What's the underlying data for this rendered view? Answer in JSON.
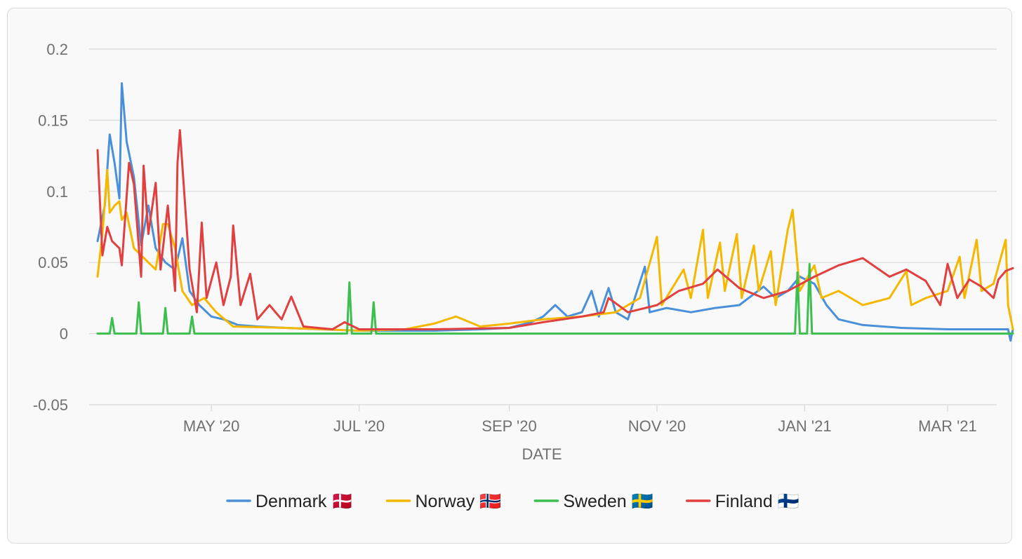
{
  "chart_data": {
    "type": "line",
    "xlabel": "DATE",
    "ylabel": "",
    "ylim": [
      -0.05,
      0.2
    ],
    "yticks": [
      "0.2",
      "0.15",
      "0.1",
      "0.05",
      "0",
      "-0.05"
    ],
    "xticks": [
      {
        "date": "2020-05-01",
        "label": "MAY '20"
      },
      {
        "date": "2020-07-01",
        "label": "JUL '20"
      },
      {
        "date": "2020-09-01",
        "label": "SEP '20"
      },
      {
        "date": "2020-11-01",
        "label": "NOV '20"
      },
      {
        "date": "2021-01-01",
        "label": "JAN '21"
      },
      {
        "date": "2021-03-01",
        "label": "MAR '21"
      }
    ],
    "xlim": [
      "2020-03-15",
      "2021-03-31"
    ],
    "grid": true,
    "legend_position": "bottom",
    "series": [
      {
        "name": "Denmark 🇩🇰",
        "color": "#4a90d9",
        "points": [
          [
            "2020-03-15",
            0.065
          ],
          [
            "2020-03-18",
            0.09
          ],
          [
            "2020-03-20",
            0.14
          ],
          [
            "2020-03-22",
            0.12
          ],
          [
            "2020-03-24",
            0.095
          ],
          [
            "2020-03-25",
            0.176
          ],
          [
            "2020-03-27",
            0.135
          ],
          [
            "2020-03-30",
            0.11
          ],
          [
            "2020-04-02",
            0.062
          ],
          [
            "2020-04-05",
            0.09
          ],
          [
            "2020-04-08",
            0.06
          ],
          [
            "2020-04-12",
            0.05
          ],
          [
            "2020-04-16",
            0.045
          ],
          [
            "2020-04-19",
            0.067
          ],
          [
            "2020-04-22",
            0.03
          ],
          [
            "2020-04-26",
            0.02
          ],
          [
            "2020-05-01",
            0.012
          ],
          [
            "2020-05-06",
            0.01
          ],
          [
            "2020-05-12",
            0.006
          ],
          [
            "2020-05-20",
            0.005
          ],
          [
            "2020-06-01",
            0.004
          ],
          [
            "2020-06-15",
            0.003
          ],
          [
            "2020-07-01",
            0.002
          ],
          [
            "2020-08-01",
            0.002
          ],
          [
            "2020-08-20",
            0.003
          ],
          [
            "2020-09-01",
            0.004
          ],
          [
            "2020-09-10",
            0.008
          ],
          [
            "2020-09-15",
            0.012
          ],
          [
            "2020-09-20",
            0.02
          ],
          [
            "2020-09-25",
            0.012
          ],
          [
            "2020-10-01",
            0.015
          ],
          [
            "2020-10-05",
            0.03
          ],
          [
            "2020-10-08",
            0.012
          ],
          [
            "2020-10-12",
            0.032
          ],
          [
            "2020-10-15",
            0.015
          ],
          [
            "2020-10-20",
            0.01
          ],
          [
            "2020-10-27",
            0.047
          ],
          [
            "2020-10-29",
            0.015
          ],
          [
            "2020-11-05",
            0.018
          ],
          [
            "2020-11-15",
            0.015
          ],
          [
            "2020-11-25",
            0.018
          ],
          [
            "2020-12-05",
            0.02
          ],
          [
            "2020-12-15",
            0.033
          ],
          [
            "2020-12-20",
            0.025
          ],
          [
            "2020-12-25",
            0.03
          ],
          [
            "2020-12-30",
            0.04
          ],
          [
            "2021-01-05",
            0.035
          ],
          [
            "2021-01-10",
            0.02
          ],
          [
            "2021-01-15",
            0.01
          ],
          [
            "2021-01-25",
            0.006
          ],
          [
            "2021-02-10",
            0.004
          ],
          [
            "2021-03-01",
            0.003
          ],
          [
            "2021-03-15",
            0.003
          ],
          [
            "2021-03-26",
            0.003
          ],
          [
            "2021-03-27",
            -0.005
          ],
          [
            "2021-03-28",
            0.003
          ]
        ]
      },
      {
        "name": "Norway 🇳🇴",
        "color": "#f5b800",
        "points": [
          [
            "2020-03-15",
            0.04
          ],
          [
            "2020-03-17",
            0.07
          ],
          [
            "2020-03-19",
            0.115
          ],
          [
            "2020-03-20",
            0.085
          ],
          [
            "2020-03-22",
            0.09
          ],
          [
            "2020-03-24",
            0.093
          ],
          [
            "2020-03-25",
            0.08
          ],
          [
            "2020-03-27",
            0.085
          ],
          [
            "2020-03-30",
            0.06
          ],
          [
            "2020-04-02",
            0.055
          ],
          [
            "2020-04-05",
            0.05
          ],
          [
            "2020-04-08",
            0.045
          ],
          [
            "2020-04-11",
            0.077
          ],
          [
            "2020-04-13",
            0.077
          ],
          [
            "2020-04-16",
            0.06
          ],
          [
            "2020-04-19",
            0.03
          ],
          [
            "2020-04-23",
            0.02
          ],
          [
            "2020-04-28",
            0.025
          ],
          [
            "2020-05-03",
            0.015
          ],
          [
            "2020-05-10",
            0.005
          ],
          [
            "2020-06-01",
            0.004
          ],
          [
            "2020-07-01",
            0.002
          ],
          [
            "2020-07-20",
            0.003
          ],
          [
            "2020-08-01",
            0.007
          ],
          [
            "2020-08-10",
            0.012
          ],
          [
            "2020-08-20",
            0.005
          ],
          [
            "2020-09-01",
            0.007
          ],
          [
            "2020-09-15",
            0.01
          ],
          [
            "2020-10-01",
            0.012
          ],
          [
            "2020-10-15",
            0.015
          ],
          [
            "2020-10-25",
            0.025
          ],
          [
            "2020-11-01",
            0.068
          ],
          [
            "2020-11-03",
            0.02
          ],
          [
            "2020-11-12",
            0.045
          ],
          [
            "2020-11-15",
            0.025
          ],
          [
            "2020-11-20",
            0.073
          ],
          [
            "2020-11-22",
            0.025
          ],
          [
            "2020-11-27",
            0.064
          ],
          [
            "2020-11-29",
            0.03
          ],
          [
            "2020-12-04",
            0.07
          ],
          [
            "2020-12-06",
            0.025
          ],
          [
            "2020-12-11",
            0.062
          ],
          [
            "2020-12-13",
            0.03
          ],
          [
            "2020-12-18",
            0.058
          ],
          [
            "2020-12-20",
            0.02
          ],
          [
            "2020-12-25",
            0.073
          ],
          [
            "2020-12-27",
            0.087
          ],
          [
            "2020-12-30",
            0.03
          ],
          [
            "2021-01-05",
            0.048
          ],
          [
            "2021-01-08",
            0.025
          ],
          [
            "2021-01-15",
            0.03
          ],
          [
            "2021-01-25",
            0.02
          ],
          [
            "2021-02-05",
            0.025
          ],
          [
            "2021-02-12",
            0.044
          ],
          [
            "2021-02-14",
            0.02
          ],
          [
            "2021-02-20",
            0.025
          ],
          [
            "2021-03-01",
            0.03
          ],
          [
            "2021-03-06",
            0.054
          ],
          [
            "2021-03-08",
            0.025
          ],
          [
            "2021-03-13",
            0.066
          ],
          [
            "2021-03-15",
            0.03
          ],
          [
            "2021-03-20",
            0.035
          ],
          [
            "2021-03-25",
            0.066
          ],
          [
            "2021-03-26",
            0.02
          ],
          [
            "2021-03-28",
            0.003
          ]
        ]
      },
      {
        "name": "Sweden 🇸🇪",
        "color": "#3cbf4e",
        "points": [
          [
            "2020-03-15",
            0.0
          ],
          [
            "2020-03-20",
            0.0
          ],
          [
            "2020-03-21",
            0.011
          ],
          [
            "2020-03-22",
            0.0
          ],
          [
            "2020-03-31",
            0.0
          ],
          [
            "2020-04-01",
            0.022
          ],
          [
            "2020-04-02",
            0.0
          ],
          [
            "2020-04-11",
            0.0
          ],
          [
            "2020-04-12",
            0.018
          ],
          [
            "2020-04-13",
            0.0
          ],
          [
            "2020-04-22",
            0.0
          ],
          [
            "2020-04-23",
            0.012
          ],
          [
            "2020-04-24",
            0.0
          ],
          [
            "2020-06-26",
            0.0
          ],
          [
            "2020-06-27",
            0.036
          ],
          [
            "2020-06-28",
            0.0
          ],
          [
            "2020-07-06",
            0.0
          ],
          [
            "2020-07-07",
            0.022
          ],
          [
            "2020-07-08",
            0.0
          ],
          [
            "2020-12-28",
            0.0
          ],
          [
            "2020-12-29",
            0.043
          ],
          [
            "2020-12-30",
            0.0
          ],
          [
            "2021-01-02",
            0.0
          ],
          [
            "2021-01-03",
            0.049
          ],
          [
            "2021-01-04",
            0.0
          ],
          [
            "2021-03-28",
            0.0
          ]
        ]
      },
      {
        "name": "Finland 🇫🇮",
        "color": "#e04040",
        "points": [
          [
            "2020-03-15",
            0.129
          ],
          [
            "2020-03-17",
            0.055
          ],
          [
            "2020-03-19",
            0.075
          ],
          [
            "2020-03-21",
            0.065
          ],
          [
            "2020-03-24",
            0.06
          ],
          [
            "2020-03-25",
            0.048
          ],
          [
            "2020-03-28",
            0.12
          ],
          [
            "2020-03-30",
            0.105
          ],
          [
            "2020-04-02",
            0.04
          ],
          [
            "2020-04-03",
            0.118
          ],
          [
            "2020-04-05",
            0.07
          ],
          [
            "2020-04-08",
            0.106
          ],
          [
            "2020-04-10",
            0.045
          ],
          [
            "2020-04-13",
            0.09
          ],
          [
            "2020-04-16",
            0.03
          ],
          [
            "2020-04-17",
            0.12
          ],
          [
            "2020-04-18",
            0.143
          ],
          [
            "2020-04-22",
            0.045
          ],
          [
            "2020-04-25",
            0.015
          ],
          [
            "2020-04-27",
            0.078
          ],
          [
            "2020-04-29",
            0.025
          ],
          [
            "2020-05-03",
            0.05
          ],
          [
            "2020-05-06",
            0.02
          ],
          [
            "2020-05-09",
            0.04
          ],
          [
            "2020-05-10",
            0.076
          ],
          [
            "2020-05-13",
            0.02
          ],
          [
            "2020-05-17",
            0.042
          ],
          [
            "2020-05-20",
            0.01
          ],
          [
            "2020-05-25",
            0.02
          ],
          [
            "2020-05-30",
            0.01
          ],
          [
            "2020-06-03",
            0.026
          ],
          [
            "2020-06-08",
            0.005
          ],
          [
            "2020-06-20",
            0.003
          ],
          [
            "2020-06-25",
            0.008
          ],
          [
            "2020-07-01",
            0.003
          ],
          [
            "2020-08-01",
            0.003
          ],
          [
            "2020-09-01",
            0.004
          ],
          [
            "2020-09-15",
            0.008
          ],
          [
            "2020-10-01",
            0.012
          ],
          [
            "2020-10-10",
            0.015
          ],
          [
            "2020-10-12",
            0.025
          ],
          [
            "2020-10-20",
            0.015
          ],
          [
            "2020-11-01",
            0.02
          ],
          [
            "2020-11-10",
            0.03
          ],
          [
            "2020-11-20",
            0.035
          ],
          [
            "2020-11-26",
            0.045
          ],
          [
            "2020-12-05",
            0.032
          ],
          [
            "2020-12-15",
            0.025
          ],
          [
            "2020-12-25",
            0.03
          ],
          [
            "2021-01-05",
            0.04
          ],
          [
            "2021-01-15",
            0.048
          ],
          [
            "2021-01-25",
            0.053
          ],
          [
            "2021-02-05",
            0.04
          ],
          [
            "2021-02-12",
            0.045
          ],
          [
            "2021-02-20",
            0.037
          ],
          [
            "2021-02-26",
            0.02
          ],
          [
            "2021-03-01",
            0.049
          ],
          [
            "2021-03-05",
            0.025
          ],
          [
            "2021-03-10",
            0.038
          ],
          [
            "2021-03-15",
            0.033
          ],
          [
            "2021-03-20",
            0.025
          ],
          [
            "2021-03-22",
            0.038
          ],
          [
            "2021-03-25",
            0.044
          ],
          [
            "2021-03-28",
            0.046
          ]
        ]
      }
    ]
  }
}
